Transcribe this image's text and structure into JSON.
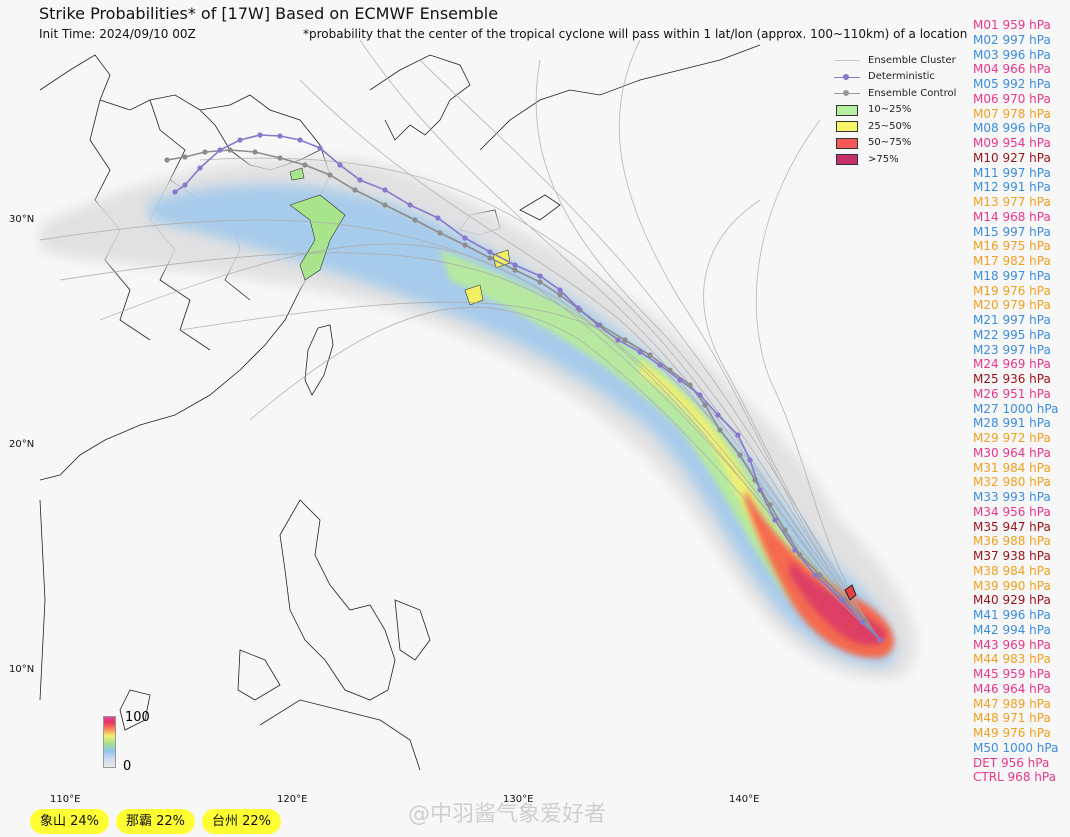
{
  "header": {
    "title": "Strike Probabilities* of [17W] Based on ECMWF Ensemble",
    "init_time": "Init Time: 2024/09/10 00Z",
    "footnote": "*probability that the center of the tropical cyclone will pass within 1 lat/lon (approx. 100~110km) of a location"
  },
  "legend": {
    "items": [
      {
        "label": "Ensemble Cluster",
        "kind": "line",
        "color": "#c8c8c8"
      },
      {
        "label": "Deterministic",
        "kind": "line-dot",
        "color": "#8878cc"
      },
      {
        "label": "Ensemble Control",
        "kind": "line-dot",
        "color": "#999999"
      },
      {
        "label": "10~25%",
        "kind": "box",
        "color": "#b4f0a0"
      },
      {
        "label": "25~50%",
        "kind": "box",
        "color": "#f4f464"
      },
      {
        "label": "50~75%",
        "kind": "box",
        "color": "#f45858"
      },
      {
        "label": ">75%",
        "kind": "box",
        "color": "#c8306a"
      }
    ]
  },
  "axes": {
    "lat_labels": [
      "30°N",
      "20°N",
      "10°N"
    ],
    "lon_labels": [
      "110°E",
      "120°E",
      "130°E",
      "140°E"
    ]
  },
  "colorbar": {
    "max_label": "100",
    "min_label": "0"
  },
  "members": [
    {
      "text": "M01 959 hPa",
      "color": "pink"
    },
    {
      "text": "M02 997 hPa",
      "color": "blue"
    },
    {
      "text": "M03 996 hPa",
      "color": "blue"
    },
    {
      "text": "M04 966 hPa",
      "color": "pink"
    },
    {
      "text": "M05 992 hPa",
      "color": "blue"
    },
    {
      "text": "M06 970 hPa",
      "color": "pink"
    },
    {
      "text": "M07 978 hPa",
      "color": "orange"
    },
    {
      "text": "M08 996 hPa",
      "color": "blue"
    },
    {
      "text": "M09 954 hPa",
      "color": "pink"
    },
    {
      "text": "M10 927 hPa",
      "color": "dark"
    },
    {
      "text": "M11 997 hPa",
      "color": "blue"
    },
    {
      "text": "M12 991 hPa",
      "color": "blue"
    },
    {
      "text": "M13 977 hPa",
      "color": "orange"
    },
    {
      "text": "M14 968 hPa",
      "color": "pink"
    },
    {
      "text": "M15 997 hPa",
      "color": "blue"
    },
    {
      "text": "M16 975 hPa",
      "color": "orange"
    },
    {
      "text": "M17 982 hPa",
      "color": "orange"
    },
    {
      "text": "M18 997 hPa",
      "color": "blue"
    },
    {
      "text": "M19 976 hPa",
      "color": "orange"
    },
    {
      "text": "M20 979 hPa",
      "color": "orange"
    },
    {
      "text": "M21 997 hPa",
      "color": "blue"
    },
    {
      "text": "M22 995 hPa",
      "color": "blue"
    },
    {
      "text": "M23 997 hPa",
      "color": "blue"
    },
    {
      "text": "M24 969 hPa",
      "color": "pink"
    },
    {
      "text": "M25 936 hPa",
      "color": "dark"
    },
    {
      "text": "M26 951 hPa",
      "color": "pink"
    },
    {
      "text": "M27 1000 hPa",
      "color": "blue"
    },
    {
      "text": "M28 991 hPa",
      "color": "blue"
    },
    {
      "text": "M29 972 hPa",
      "color": "orange"
    },
    {
      "text": "M30 964 hPa",
      "color": "pink"
    },
    {
      "text": "M31 984 hPa",
      "color": "orange"
    },
    {
      "text": "M32 980 hPa",
      "color": "orange"
    },
    {
      "text": "M33 993 hPa",
      "color": "blue"
    },
    {
      "text": "M34 956 hPa",
      "color": "pink"
    },
    {
      "text": "M35 947 hPa",
      "color": "dark"
    },
    {
      "text": "M36 988 hPa",
      "color": "orange"
    },
    {
      "text": "M37 938 hPa",
      "color": "dark"
    },
    {
      "text": "M38 984 hPa",
      "color": "orange"
    },
    {
      "text": "M39 990 hPa",
      "color": "orange"
    },
    {
      "text": "M40 929 hPa",
      "color": "dark"
    },
    {
      "text": "M41 996 hPa",
      "color": "blue"
    },
    {
      "text": "M42 994 hPa",
      "color": "blue"
    },
    {
      "text": "M43 969 hPa",
      "color": "pink"
    },
    {
      "text": "M44 983 hPa",
      "color": "orange"
    },
    {
      "text": "M45 959 hPa",
      "color": "pink"
    },
    {
      "text": "M46 964 hPa",
      "color": "pink"
    },
    {
      "text": "M47 989 hPa",
      "color": "orange"
    },
    {
      "text": "M48 971 hPa",
      "color": "orange"
    },
    {
      "text": "M49 976 hPa",
      "color": "orange"
    },
    {
      "text": "M50 1000 hPa",
      "color": "blue"
    },
    {
      "text": "DET 956 hPa",
      "color": "pink"
    },
    {
      "text": "CTRL 968 hPa",
      "color": "pink"
    }
  ],
  "locations": [
    {
      "text": "象山 24%"
    },
    {
      "text": "那霸 22%"
    },
    {
      "text": "台州 22%"
    }
  ],
  "watermark": "@中羽酱气象爱好者"
}
